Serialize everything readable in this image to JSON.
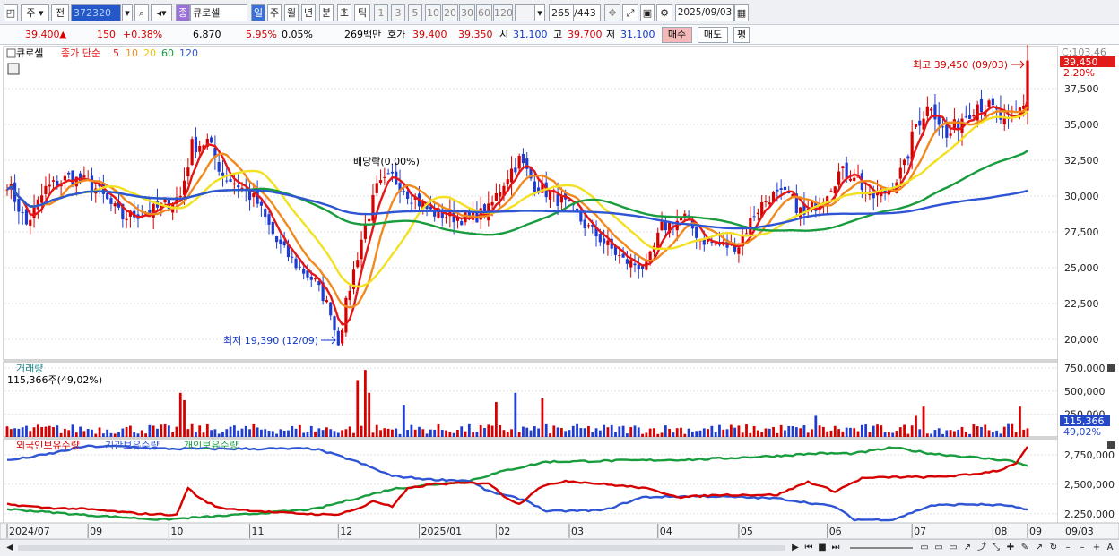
{
  "toolbar": {
    "market_label": "주",
    "period_label": "전",
    "stock_code": "372320",
    "tag_label": "종",
    "stock_name": "큐로셀",
    "period_buttons": [
      "일",
      "주",
      "월",
      "년",
      "분",
      "초",
      "틱"
    ],
    "interval_buttons": [
      "1",
      "3",
      "5",
      "10",
      "20",
      "30",
      "60",
      "120"
    ],
    "page_counter": "265",
    "page_total": "/443",
    "date": "2025/09/03"
  },
  "quote": {
    "price": "39,400",
    "arrow": "▲",
    "change": "150",
    "change_pct": "+0.38%",
    "volume": "6,870",
    "rate1": "5.95%",
    "rate2": "0.05%",
    "amount": "269백만",
    "bid_label": "호가",
    "ask_price": "39,400",
    "bid_price": "39,350",
    "open_label": "시",
    "open": "31,100",
    "high_label": "고",
    "high": "39,700",
    "low_label": "저",
    "low": "31,100",
    "buy_button": "매수",
    "sell_button": "매도",
    "eval_button": "평"
  },
  "colors": {
    "up": "#d60000",
    "down": "#1e3cd2",
    "ma5": "#e51616",
    "ma10": "#f08a1e",
    "ma20": "#f3e020",
    "ma60": "#189c3e",
    "ma120": "#2f55d4"
  },
  "price_panel": {
    "legend": {
      "name": "큐로셀",
      "type": "종가 단순",
      "ma": [
        "5",
        "10",
        "20",
        "60",
        "120"
      ]
    },
    "dividend_label": "배당락(0.00%)",
    "max_label": "최고 39,450 (09/03)",
    "min_label": "최저 19,390 (12/09)",
    "right_top_label": "C:103.46",
    "current_badge": "39,450",
    "current_badge_pct": "2.20%"
  },
  "volume_panel": {
    "title": "거래량",
    "value_label": "115,366주(49,02%)",
    "badge": "115,366",
    "badge_pct": "49,02%"
  },
  "holding_panel": {
    "titles": [
      "외국인보유수량",
      "기관보유수량",
      "개인보유수량"
    ]
  },
  "chart_data": {
    "type": "candlestick",
    "date_range": [
      "2024/07",
      "2025/09/03"
    ],
    "x_labels": [
      "2024/07",
      "09",
      "10",
      "11",
      "12",
      "2025/01",
      "02",
      "03",
      "04",
      "05",
      "06",
      "07",
      "08",
      "09",
      "09/03"
    ],
    "price_axis": {
      "ticks": [
        20000,
        22500,
        25000,
        27500,
        30000,
        32500,
        35000,
        37500
      ],
      "tick_labels": [
        "20,000",
        "22,500",
        "25,000",
        "27,500",
        "30,000",
        "32,500",
        "35,000",
        "37,500"
      ],
      "range": [
        18700,
        40300
      ]
    },
    "volume_axis": {
      "ticks": [
        250000,
        500000,
        750000
      ],
      "tick_labels": [
        "250,000",
        "500,000",
        "750,000"
      ],
      "range": [
        0,
        800000
      ]
    },
    "holding_axis": {
      "ticks": [
        2250000,
        2500000,
        2750000
      ],
      "tick_labels": [
        "2,250,000",
        "2,500,000",
        "2,750,000"
      ],
      "range": [
        2180000,
        2870000
      ]
    },
    "price_anchors": [
      [
        0,
        31000
      ],
      [
        5,
        28000
      ],
      [
        10,
        30500
      ],
      [
        16,
        31300
      ],
      [
        22,
        30800
      ],
      [
        30,
        28500
      ],
      [
        38,
        29000
      ],
      [
        45,
        30000
      ],
      [
        48,
        33500
      ],
      [
        52,
        33800
      ],
      [
        56,
        31500
      ],
      [
        60,
        30800
      ],
      [
        65,
        29500
      ],
      [
        70,
        26800
      ],
      [
        75,
        25200
      ],
      [
        80,
        24000
      ],
      [
        84,
        22000
      ],
      [
        86,
        19390
      ],
      [
        88,
        22500
      ],
      [
        92,
        27000
      ],
      [
        96,
        30500
      ],
      [
        100,
        31300
      ],
      [
        105,
        30000
      ],
      [
        110,
        28900
      ],
      [
        115,
        28600
      ],
      [
        120,
        28400
      ],
      [
        125,
        29000
      ],
      [
        130,
        31500
      ],
      [
        133,
        32500
      ],
      [
        137,
        30800
      ],
      [
        142,
        30000
      ],
      [
        146,
        29200
      ],
      [
        150,
        28000
      ],
      [
        155,
        26800
      ],
      [
        160,
        25500
      ],
      [
        166,
        25000
      ],
      [
        170,
        27800
      ],
      [
        176,
        28500
      ],
      [
        180,
        27000
      ],
      [
        186,
        26500
      ],
      [
        190,
        26600
      ],
      [
        194,
        28800
      ],
      [
        198,
        30000
      ],
      [
        203,
        30000
      ],
      [
        207,
        28600
      ],
      [
        212,
        30000
      ],
      [
        216,
        31600
      ],
      [
        220,
        31600
      ],
      [
        224,
        29800
      ],
      [
        229,
        30500
      ],
      [
        233,
        32000
      ],
      [
        236,
        35000
      ],
      [
        240,
        36500
      ],
      [
        244,
        34000
      ],
      [
        248,
        35500
      ],
      [
        252,
        36500
      ],
      [
        256,
        36000
      ],
      [
        260,
        34800
      ],
      [
        264,
        36500
      ],
      [
        265,
        39450
      ]
    ],
    "volume_spikes": [
      [
        45,
        480000
      ],
      [
        46,
        400000
      ],
      [
        91,
        620000
      ],
      [
        93,
        730000
      ],
      [
        94,
        480000
      ],
      [
        103,
        350000
      ],
      [
        127,
        380000
      ],
      [
        132,
        480000
      ],
      [
        139,
        420000
      ],
      [
        210,
        230000
      ],
      [
        236,
        230000
      ],
      [
        238,
        330000
      ],
      [
        263,
        330000
      ]
    ],
    "foreign_holding_anchors": [
      [
        0,
        2330000
      ],
      [
        10,
        2300000
      ],
      [
        20,
        2290000
      ],
      [
        35,
        2250000
      ],
      [
        44,
        2240000
      ],
      [
        47,
        2470000
      ],
      [
        50,
        2380000
      ],
      [
        55,
        2300000
      ],
      [
        70,
        2260000
      ],
      [
        85,
        2240000
      ],
      [
        92,
        2300000
      ],
      [
        95,
        2360000
      ],
      [
        100,
        2310000
      ],
      [
        104,
        2460000
      ],
      [
        110,
        2500000
      ],
      [
        120,
        2510000
      ],
      [
        125,
        2510000
      ],
      [
        129,
        2400000
      ],
      [
        133,
        2330000
      ],
      [
        138,
        2470000
      ],
      [
        145,
        2530000
      ],
      [
        155,
        2500000
      ],
      [
        165,
        2470000
      ],
      [
        175,
        2390000
      ],
      [
        185,
        2410000
      ],
      [
        200,
        2410000
      ],
      [
        208,
        2520000
      ],
      [
        215,
        2440000
      ],
      [
        222,
        2550000
      ],
      [
        230,
        2560000
      ],
      [
        240,
        2560000
      ],
      [
        250,
        2580000
      ],
      [
        258,
        2620000
      ],
      [
        262,
        2680000
      ],
      [
        265,
        2810000
      ]
    ],
    "institution_holding_anchors": [
      [
        0,
        2700000
      ],
      [
        10,
        2750000
      ],
      [
        20,
        2820000
      ],
      [
        30,
        2820000
      ],
      [
        40,
        2800000
      ],
      [
        80,
        2800000
      ],
      [
        90,
        2700000
      ],
      [
        100,
        2570000
      ],
      [
        110,
        2540000
      ],
      [
        120,
        2530000
      ],
      [
        125,
        2440000
      ],
      [
        135,
        2360000
      ],
      [
        140,
        2270000
      ],
      [
        155,
        2280000
      ],
      [
        165,
        2390000
      ],
      [
        180,
        2400000
      ],
      [
        200,
        2380000
      ],
      [
        215,
        2310000
      ],
      [
        220,
        2200000
      ],
      [
        230,
        2200000
      ],
      [
        240,
        2320000
      ],
      [
        250,
        2330000
      ],
      [
        260,
        2320000
      ],
      [
        265,
        2280000
      ]
    ],
    "individual_holding_anchors": [
      [
        0,
        2290000
      ],
      [
        20,
        2240000
      ],
      [
        40,
        2200000
      ],
      [
        60,
        2240000
      ],
      [
        80,
        2290000
      ],
      [
        100,
        2460000
      ],
      [
        120,
        2530000
      ],
      [
        130,
        2620000
      ],
      [
        140,
        2690000
      ],
      [
        160,
        2700000
      ],
      [
        180,
        2710000
      ],
      [
        200,
        2740000
      ],
      [
        210,
        2760000
      ],
      [
        220,
        2760000
      ],
      [
        230,
        2810000
      ],
      [
        240,
        2760000
      ],
      [
        250,
        2730000
      ],
      [
        260,
        2700000
      ],
      [
        265,
        2660000
      ]
    ],
    "series": [
      {
        "name": "5",
        "kind": "sma",
        "period": 5
      },
      {
        "name": "10",
        "kind": "sma",
        "period": 10
      },
      {
        "name": "20",
        "kind": "sma",
        "period": 20
      },
      {
        "name": "60",
        "kind": "sma",
        "period": 60
      },
      {
        "name": "120",
        "kind": "sma",
        "period": 120
      },
      {
        "name": "외국인보유수량",
        "kind": "holding"
      },
      {
        "name": "기관보유수량",
        "kind": "holding"
      },
      {
        "name": "개인보유수량",
        "kind": "holding"
      }
    ]
  }
}
